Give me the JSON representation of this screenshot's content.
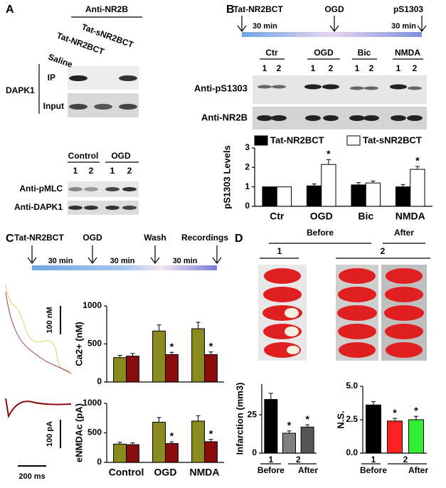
{
  "panel_a": {
    "label": "A",
    "antibody": "Anti-NR2B",
    "treatments": [
      "Saline",
      "Tat-NR2BCT",
      "Tat-sNR2BCT"
    ],
    "target": "DAPK1",
    "rows": [
      "IP",
      "Input"
    ],
    "groups": [
      "Control",
      "OGD"
    ],
    "lanes": [
      "1",
      "2",
      "1",
      "2"
    ],
    "blots": [
      "Anti-pMLC",
      "Anti-DAPK1"
    ]
  },
  "panel_b": {
    "label": "B",
    "timeline": [
      "Tat-NR2BCT",
      "OGD",
      "pS1303"
    ],
    "durations": [
      "30 min",
      "30 min"
    ],
    "groups": [
      "Ctr",
      "OGD",
      "Bic",
      "NMDA"
    ],
    "lanes": [
      "1",
      "2",
      "1",
      "2",
      "1",
      "2",
      "1",
      "2"
    ],
    "blots": [
      "Anti-pS1303",
      "Anti-NR2B"
    ]
  },
  "panel_c": {
    "label": "C",
    "timeline": [
      "Tat-NR2BCT",
      "OGD",
      "Wash",
      "Recordings"
    ],
    "durations": [
      "30 min",
      "30 min",
      "30 min"
    ],
    "scale_bars": [
      "100 nM",
      "100 pA",
      "200 ms"
    ]
  },
  "panel_d": {
    "label": "D",
    "groups": [
      "Before",
      "After"
    ],
    "sets": [
      "1",
      "2"
    ]
  },
  "chart_data": [
    {
      "type": "bar",
      "ylabel": "pS1303 Levels",
      "categories": [
        "Ctr",
        "OGD",
        "Bic",
        "NMDA"
      ],
      "ylim": [
        0,
        3
      ],
      "yticks": [
        0,
        1,
        2,
        3
      ],
      "series": [
        {
          "name": "Tat-NR2BCT",
          "color": "#000000",
          "values": [
            1,
            1.05,
            1.1,
            1.0
          ],
          "errors": [
            0,
            0.1,
            0.12,
            0.12
          ],
          "annotations": [
            null,
            null,
            null,
            null
          ]
        },
        {
          "name": "Tat-sNR2BCT",
          "color": "#ffffff",
          "values": [
            1,
            2.15,
            1.2,
            1.9
          ],
          "errors": [
            0,
            0.25,
            0.1,
            0.15
          ],
          "annotations": [
            null,
            "*",
            null,
            "*"
          ]
        }
      ]
    },
    {
      "type": "bar",
      "ylabel": "Ca2+ (nM)",
      "categories": [
        null,
        null,
        null
      ],
      "ylim": [
        0,
        1000
      ],
      "yticks": [
        0,
        500,
        1000
      ],
      "series": [
        {
          "color": "#8a8a1e",
          "values": [
            320,
            670,
            700
          ],
          "errors": [
            30,
            80,
            85
          ],
          "annotations": [
            null,
            null,
            null
          ]
        },
        {
          "color": "#8b0c0c",
          "values": [
            340,
            360,
            360
          ],
          "errors": [
            35,
            30,
            35
          ],
          "annotations": [
            null,
            "*",
            "*"
          ]
        }
      ]
    },
    {
      "type": "bar",
      "ylabel": "eNMDAc (pA)",
      "categories": [
        "Control",
        "OGD",
        "NMDA"
      ],
      "ylim": [
        0,
        1000
      ],
      "yticks": [
        0,
        500,
        1000
      ],
      "series": [
        {
          "color": "#8a8a1e",
          "values": [
            310,
            680,
            700
          ],
          "errors": [
            30,
            80,
            90
          ],
          "annotations": [
            null,
            null,
            null
          ]
        },
        {
          "color": "#8b0c0c",
          "values": [
            300,
            320,
            350
          ],
          "errors": [
            30,
            30,
            40
          ],
          "annotations": [
            null,
            "*",
            "*"
          ]
        }
      ]
    },
    {
      "type": "bar",
      "ylabel": "Infarction (mm3)",
      "categories": [
        "1",
        "2",
        null
      ],
      "x_groups": [
        "Before",
        "After"
      ],
      "ylim": [
        0,
        45
      ],
      "yticks": [
        0,
        25
      ],
      "values": [
        35,
        13,
        17
      ],
      "errors": [
        4,
        1.5,
        1.5
      ],
      "colors": [
        "#000000",
        "#808080",
        "#555555"
      ],
      "annotations": [
        null,
        "*",
        "*"
      ]
    },
    {
      "type": "bar",
      "ylabel": "N.S.",
      "categories": [
        "1",
        "2",
        null
      ],
      "x_groups": [
        "Before",
        "After"
      ],
      "ylim": [
        0,
        5
      ],
      "yticks": [
        {
          "value": 0,
          "label": "0.0"
        },
        {
          "value": 2.5,
          "label": "2.5"
        },
        {
          "value": 5,
          "label": "5.0"
        }
      ],
      "values": [
        3.6,
        2.4,
        2.5
      ],
      "errors": [
        0.25,
        0.2,
        0.25
      ],
      "colors": [
        "#000000",
        "#ff2020",
        "#33ee33"
      ],
      "annotations": [
        null,
        "*",
        "*"
      ]
    }
  ]
}
